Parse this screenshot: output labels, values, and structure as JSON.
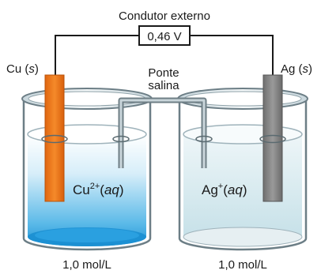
{
  "title": "Condutor externo",
  "voltmeter_reading": "0,46 V",
  "salt_bridge_label_line1": "Ponte",
  "salt_bridge_label_line2": "salina",
  "left_cell": {
    "electrode_symbol": "Cu",
    "electrode_state": "s",
    "ion_symbol": "Cu",
    "ion_charge": "2+",
    "ion_state": "aq",
    "concentration": "1,0 mol/L",
    "electrode_color": "#f07b1f",
    "solution_color": "#39a7e0"
  },
  "right_cell": {
    "electrode_symbol": "Ag",
    "electrode_state": "s",
    "ion_symbol": "Ag",
    "ion_charge": "+",
    "ion_state": "aq",
    "concentration": "1,0 mol/L",
    "electrode_color": "#8c8c8c",
    "solution_color": "#cfe4ea"
  }
}
